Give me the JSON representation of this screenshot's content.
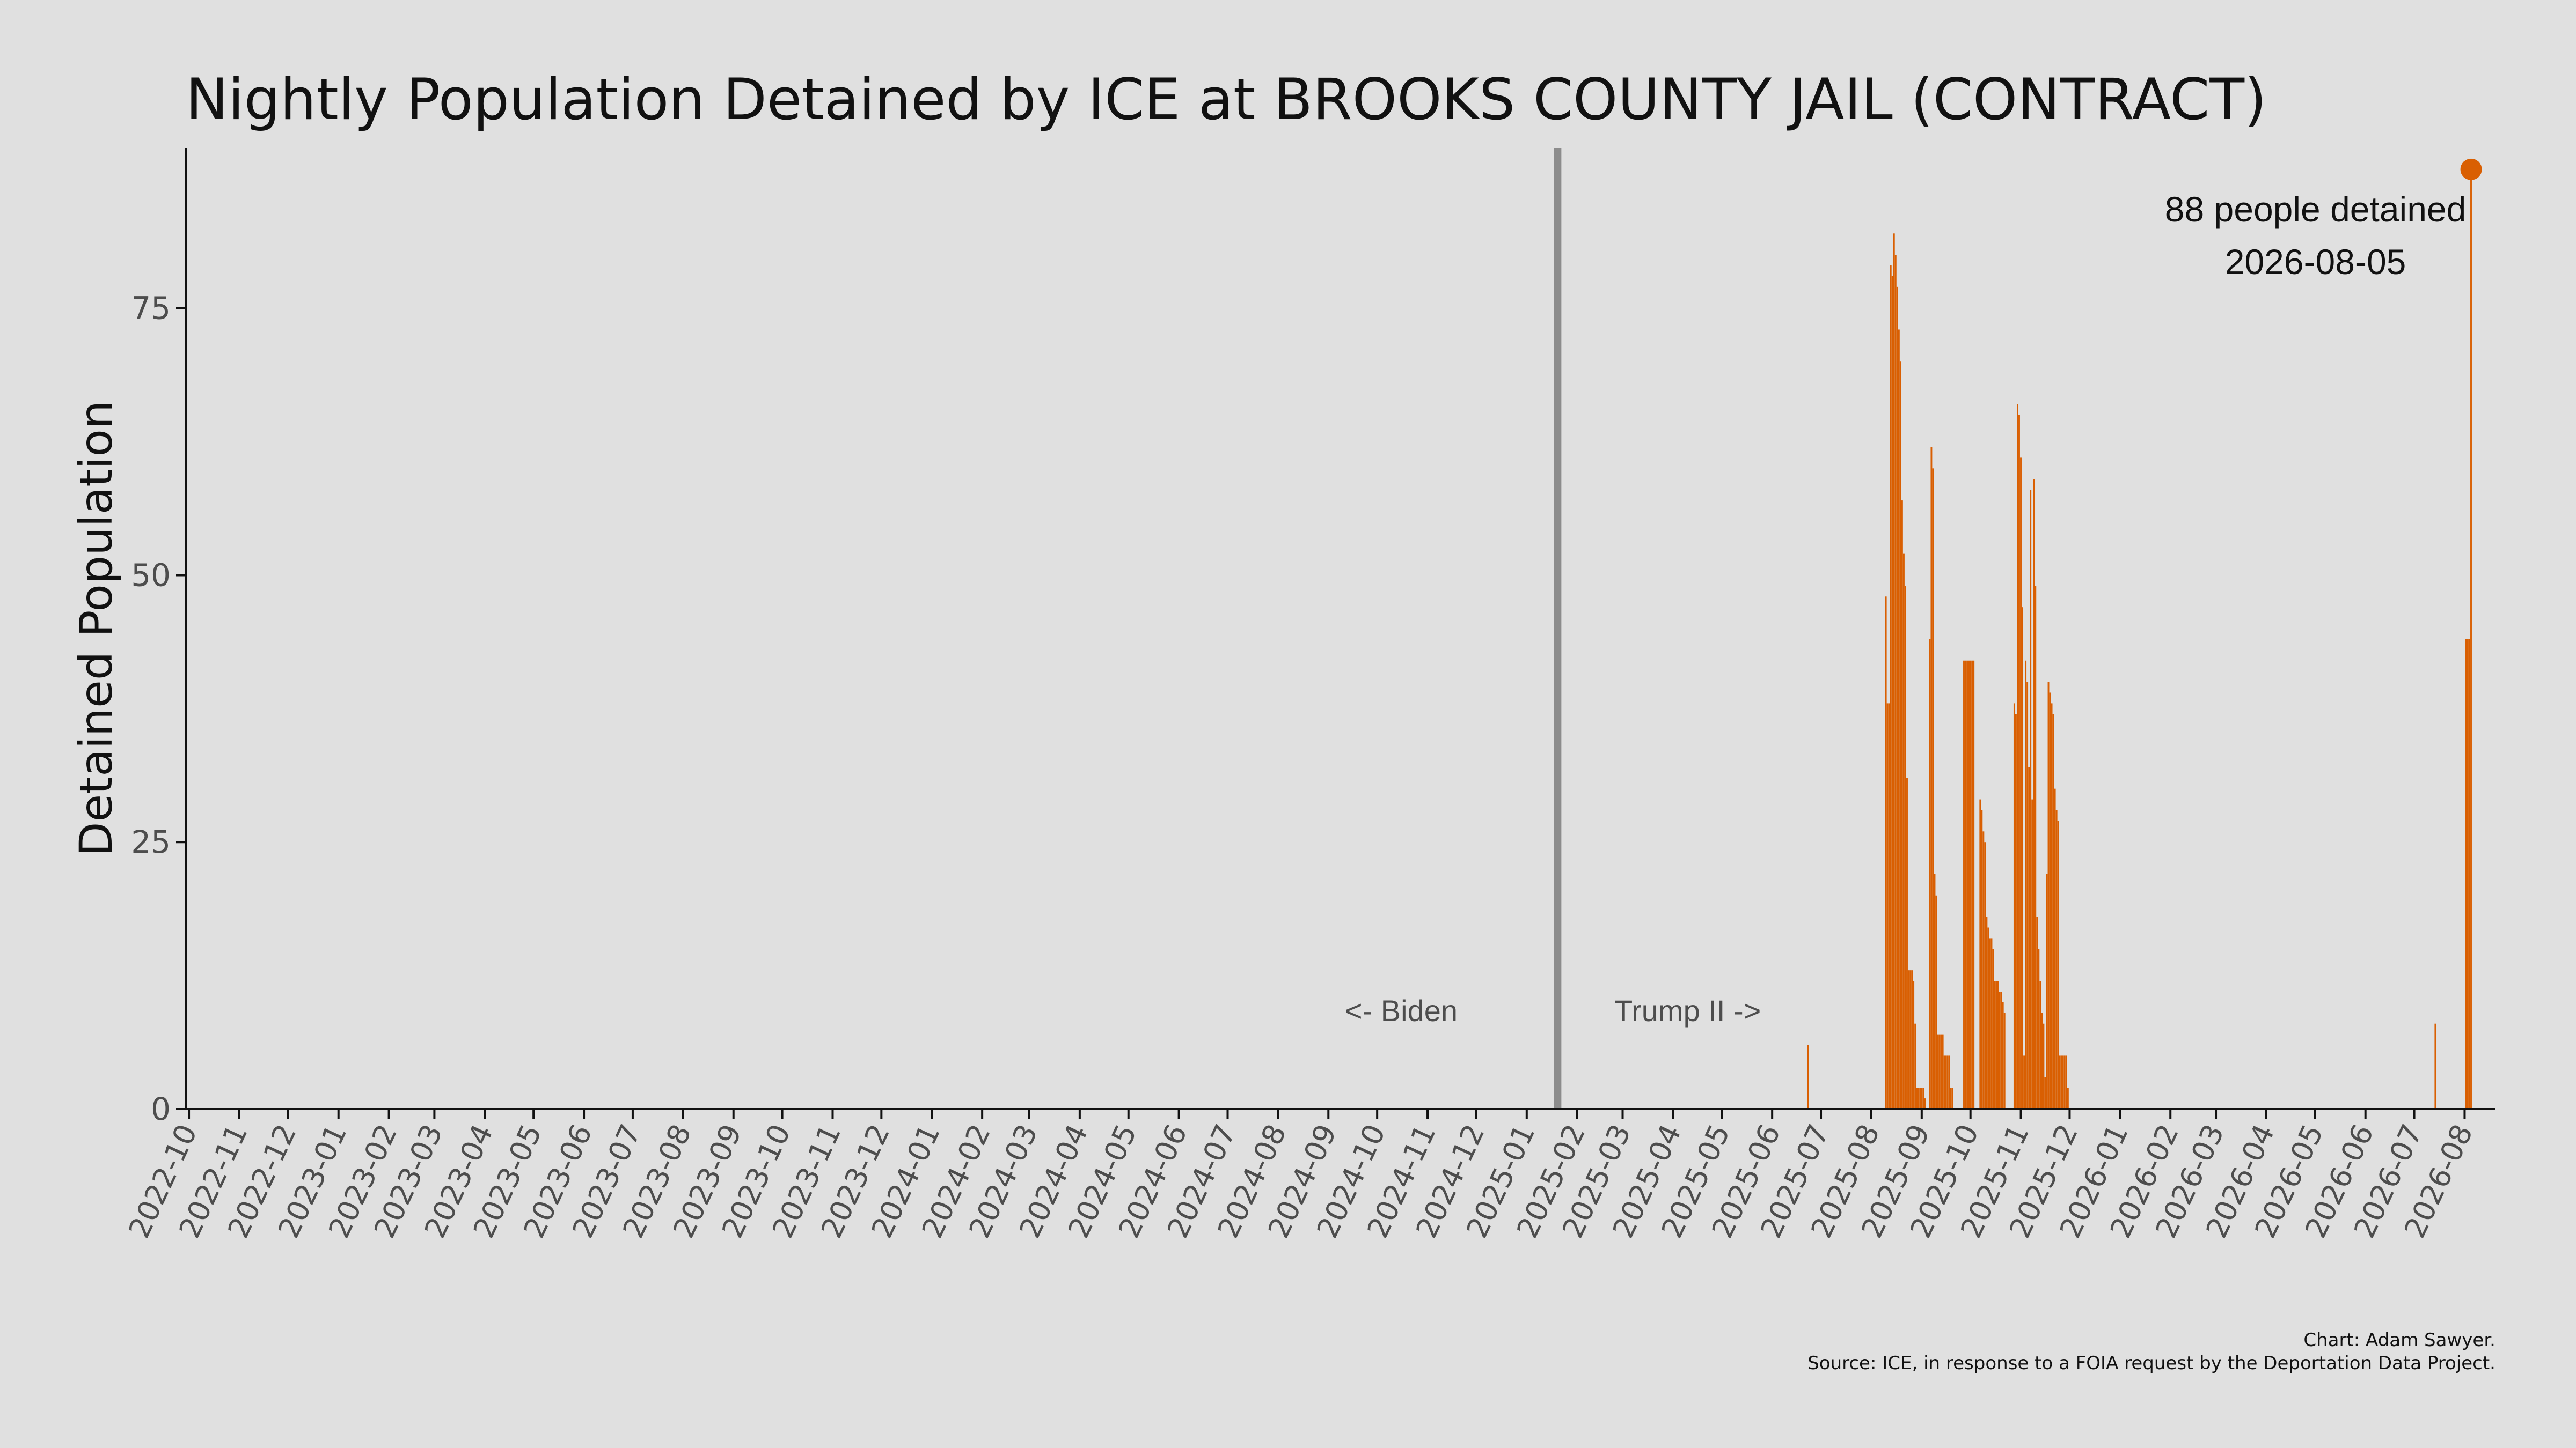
{
  "chart_data": {
    "type": "bar",
    "title": "Nightly Population Detained by ICE at BROOKS COUNTY JAIL (CONTRACT)",
    "xlabel": "",
    "ylabel": "Detained Population",
    "ylim": [
      0,
      90
    ],
    "yticks": [
      0,
      25,
      50,
      75
    ],
    "xlim": [
      "2022-09-29",
      "2026-08-20"
    ],
    "xtick_labels": [
      "2022-10",
      "2022-11",
      "2022-12",
      "2023-01",
      "2023-02",
      "2023-03",
      "2023-04",
      "2023-05",
      "2023-06",
      "2023-07",
      "2023-08",
      "2023-09",
      "2023-10",
      "2023-11",
      "2023-12",
      "2024-01",
      "2024-02",
      "2024-03",
      "2024-04",
      "2024-05",
      "2024-06",
      "2024-07",
      "2024-08",
      "2024-09",
      "2024-10",
      "2024-11",
      "2024-12",
      "2025-01",
      "2025-02",
      "2025-03",
      "2025-04",
      "2025-05",
      "2025-06",
      "2025-07",
      "2025-08",
      "2025-09",
      "2025-10",
      "2025-11",
      "2025-12",
      "2026-01",
      "2026-02",
      "2026-03",
      "2026-04",
      "2026-05",
      "2026-06",
      "2026-07",
      "2026-08"
    ],
    "grid": false,
    "bar_color": "#d95f02",
    "divider": {
      "date": "2025-01-20",
      "color": "#8c8c8c"
    },
    "era_labels": {
      "left": "<- Biden",
      "right": "Trump II ->"
    },
    "peak": {
      "date": "2026-08-05",
      "value": 88,
      "label": "88 people detained",
      "date_label": "2026-08-05"
    },
    "series": [
      {
        "values": [
          {
            "date": "2025-06-23",
            "value": 6
          },
          {
            "date": "2025-08-10",
            "value": 48
          },
          {
            "date": "2025-08-11",
            "value": 38
          },
          {
            "date": "2025-08-12",
            "value": 38
          },
          {
            "date": "2025-08-13",
            "value": 79
          },
          {
            "date": "2025-08-14",
            "value": 78
          },
          {
            "date": "2025-08-15",
            "value": 82
          },
          {
            "date": "2025-08-16",
            "value": 80
          },
          {
            "date": "2025-08-17",
            "value": 77
          },
          {
            "date": "2025-08-18",
            "value": 73
          },
          {
            "date": "2025-08-19",
            "value": 70
          },
          {
            "date": "2025-08-20",
            "value": 57
          },
          {
            "date": "2025-08-21",
            "value": 52
          },
          {
            "date": "2025-08-22",
            "value": 49
          },
          {
            "date": "2025-08-23",
            "value": 31
          },
          {
            "date": "2025-08-24",
            "value": 13
          },
          {
            "date": "2025-08-25",
            "value": 13
          },
          {
            "date": "2025-08-26",
            "value": 13
          },
          {
            "date": "2025-08-27",
            "value": 12
          },
          {
            "date": "2025-08-28",
            "value": 8
          },
          {
            "date": "2025-08-29",
            "value": 2
          },
          {
            "date": "2025-08-30",
            "value": 2
          },
          {
            "date": "2025-08-31",
            "value": 2
          },
          {
            "date": "2025-09-01",
            "value": 2
          },
          {
            "date": "2025-09-02",
            "value": 2
          },
          {
            "date": "2025-09-03",
            "value": 1
          },
          {
            "date": "2025-09-06",
            "value": 44
          },
          {
            "date": "2025-09-07",
            "value": 62
          },
          {
            "date": "2025-09-08",
            "value": 60
          },
          {
            "date": "2025-09-09",
            "value": 22
          },
          {
            "date": "2025-09-10",
            "value": 20
          },
          {
            "date": "2025-09-11",
            "value": 7
          },
          {
            "date": "2025-09-12",
            "value": 7
          },
          {
            "date": "2025-09-13",
            "value": 7
          },
          {
            "date": "2025-09-14",
            "value": 7
          },
          {
            "date": "2025-09-15",
            "value": 5
          },
          {
            "date": "2025-09-16",
            "value": 5
          },
          {
            "date": "2025-09-17",
            "value": 5
          },
          {
            "date": "2025-09-18",
            "value": 5
          },
          {
            "date": "2025-09-19",
            "value": 2
          },
          {
            "date": "2025-09-20",
            "value": 2
          },
          {
            "date": "2025-09-27",
            "value": 42
          },
          {
            "date": "2025-09-28",
            "value": 42
          },
          {
            "date": "2025-09-29",
            "value": 42
          },
          {
            "date": "2025-09-30",
            "value": 42
          },
          {
            "date": "2025-10-01",
            "value": 42
          },
          {
            "date": "2025-10-02",
            "value": 42
          },
          {
            "date": "2025-10-03",
            "value": 42
          },
          {
            "date": "2025-10-07",
            "value": 29
          },
          {
            "date": "2025-10-08",
            "value": 28
          },
          {
            "date": "2025-10-09",
            "value": 26
          },
          {
            "date": "2025-10-10",
            "value": 25
          },
          {
            "date": "2025-10-11",
            "value": 18
          },
          {
            "date": "2025-10-12",
            "value": 17
          },
          {
            "date": "2025-10-13",
            "value": 16
          },
          {
            "date": "2025-10-14",
            "value": 16
          },
          {
            "date": "2025-10-15",
            "value": 15
          },
          {
            "date": "2025-10-16",
            "value": 12
          },
          {
            "date": "2025-10-17",
            "value": 12
          },
          {
            "date": "2025-10-18",
            "value": 12
          },
          {
            "date": "2025-10-19",
            "value": 11
          },
          {
            "date": "2025-10-20",
            "value": 11
          },
          {
            "date": "2025-10-21",
            "value": 10
          },
          {
            "date": "2025-10-22",
            "value": 9
          },
          {
            "date": "2025-10-28",
            "value": 38
          },
          {
            "date": "2025-10-29",
            "value": 37
          },
          {
            "date": "2025-10-30",
            "value": 66
          },
          {
            "date": "2025-10-31",
            "value": 65
          },
          {
            "date": "2025-11-01",
            "value": 61
          },
          {
            "date": "2025-11-02",
            "value": 47
          },
          {
            "date": "2025-11-03",
            "value": 5
          },
          {
            "date": "2025-11-04",
            "value": 42
          },
          {
            "date": "2025-11-05",
            "value": 40
          },
          {
            "date": "2025-11-06",
            "value": 32
          },
          {
            "date": "2025-11-07",
            "value": 58
          },
          {
            "date": "2025-11-08",
            "value": 29
          },
          {
            "date": "2025-11-09",
            "value": 59
          },
          {
            "date": "2025-11-10",
            "value": 49
          },
          {
            "date": "2025-11-11",
            "value": 18
          },
          {
            "date": "2025-11-12",
            "value": 15
          },
          {
            "date": "2025-11-13",
            "value": 12
          },
          {
            "date": "2025-11-14",
            "value": 9
          },
          {
            "date": "2025-11-15",
            "value": 8
          },
          {
            "date": "2025-11-16",
            "value": 3
          },
          {
            "date": "2025-11-17",
            "value": 22
          },
          {
            "date": "2025-11-18",
            "value": 40
          },
          {
            "date": "2025-11-19",
            "value": 39
          },
          {
            "date": "2025-11-20",
            "value": 38
          },
          {
            "date": "2025-11-21",
            "value": 37
          },
          {
            "date": "2025-11-22",
            "value": 30
          },
          {
            "date": "2025-11-23",
            "value": 28
          },
          {
            "date": "2025-11-24",
            "value": 27
          },
          {
            "date": "2025-11-25",
            "value": 5
          },
          {
            "date": "2025-11-26",
            "value": 5
          },
          {
            "date": "2025-11-27",
            "value": 5
          },
          {
            "date": "2025-11-28",
            "value": 5
          },
          {
            "date": "2025-11-29",
            "value": 5
          },
          {
            "date": "2025-11-30",
            "value": 2
          },
          {
            "date": "2026-07-14",
            "value": 8
          },
          {
            "date": "2026-08-02",
            "value": 44
          },
          {
            "date": "2026-08-03",
            "value": 44
          },
          {
            "date": "2026-08-04",
            "value": 44
          },
          {
            "date": "2026-08-05",
            "value": 88
          }
        ]
      }
    ],
    "caption": [
      "Chart: Adam Sawyer.",
      "Source: ICE, in response to a FOIA request by the Deportation Data Project."
    ]
  }
}
